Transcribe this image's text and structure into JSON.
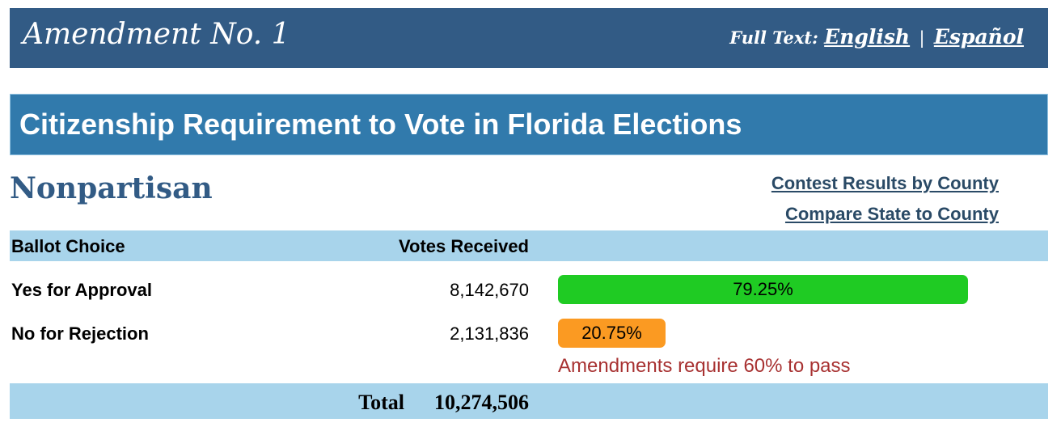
{
  "header": {
    "title": "Amendment No. 1",
    "full_text_label": "Full Text:",
    "links": [
      "English",
      "Español"
    ],
    "separator": "|"
  },
  "subheader": {
    "title": "Citizenship Requirement to Vote in Florida Elections"
  },
  "party": "Nonpartisan",
  "links": {
    "by_county": "Contest Results by County",
    "compare": "Compare State to County"
  },
  "table": {
    "headers": {
      "choice": "Ballot Choice",
      "votes": "Votes Received"
    },
    "rows": [
      {
        "choice": "Yes for Approval",
        "votes": "8,142,670",
        "percent_label": "79.25%",
        "percent": 79.25,
        "color": "#1fcb23"
      },
      {
        "choice": "No for Rejection",
        "votes": "2,131,836",
        "percent_label": "20.75%",
        "percent": 20.75,
        "color": "#fb9a22"
      }
    ],
    "note": "Amendments require 60% to pass",
    "total_label": "Total",
    "total_value": "10,274,506"
  },
  "colors": {
    "header_bg": "#325b85",
    "subheader_bg": "#317aac",
    "table_band": "#a8d4eb",
    "note": "#a83232"
  }
}
